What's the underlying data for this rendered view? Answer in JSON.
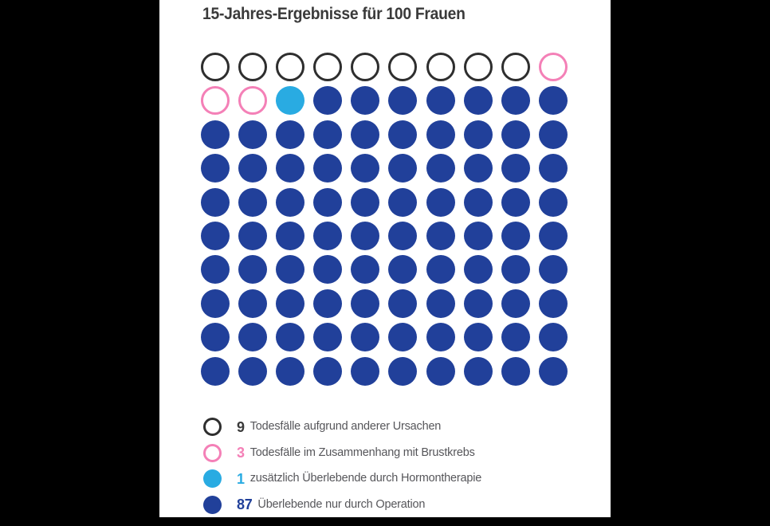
{
  "title": "15-Jahres-Ergebnisse für 100 Frauen",
  "colors": {
    "background": "#000000",
    "panel": "#ffffff",
    "title_text": "#3a3a3a",
    "legend_text": "#56565a",
    "other_death": "#2e2e2e",
    "breast_cancer": "#f480b7",
    "hormone": "#29abe2",
    "surgery": "#21409a"
  },
  "chart_data": {
    "type": "icon-array",
    "title": "15-Jahres-Ergebnisse für 100 Frauen",
    "total": 100,
    "grid": {
      "rows": 10,
      "cols": 10
    },
    "cell_rows_row_major": [
      "ooooooooob",
      "bbhsssssss",
      "ssssssssss",
      "ssssssssss",
      "ssssssssss",
      "ssssssssss",
      "ssssssssss",
      "ssssssssss",
      "ssssssssss",
      "ssssssssss"
    ],
    "cell_code_to_category": {
      "o": "other_death",
      "b": "breast_cancer_death",
      "h": "hormone_survivor",
      "s": "surgery_survivor"
    },
    "categories": [
      {
        "key": "other_death",
        "code": "o",
        "count": 9,
        "label": "Todesfälle aufgrund anderer Ursachen",
        "style": "outline",
        "color": "#2e2e2e",
        "number_color": "#3a3a3a"
      },
      {
        "key": "breast_cancer_death",
        "code": "b",
        "count": 3,
        "label": "Todesfälle im Zusammenhang mit Brustkrebs",
        "style": "outline",
        "color": "#f480b7",
        "number_color": "#f480b7"
      },
      {
        "key": "hormone_survivor",
        "code": "h",
        "count": 1,
        "label": "zusätzlich Überlebende durch Hormontherapie",
        "style": "fill",
        "color": "#29abe2",
        "number_color": "#29abe2"
      },
      {
        "key": "surgery_survivor",
        "code": "s",
        "count": 87,
        "label": "Überlebende nur durch Operation",
        "style": "fill",
        "color": "#21409a",
        "number_color": "#21409a"
      }
    ],
    "legend_position": "bottom-left"
  }
}
